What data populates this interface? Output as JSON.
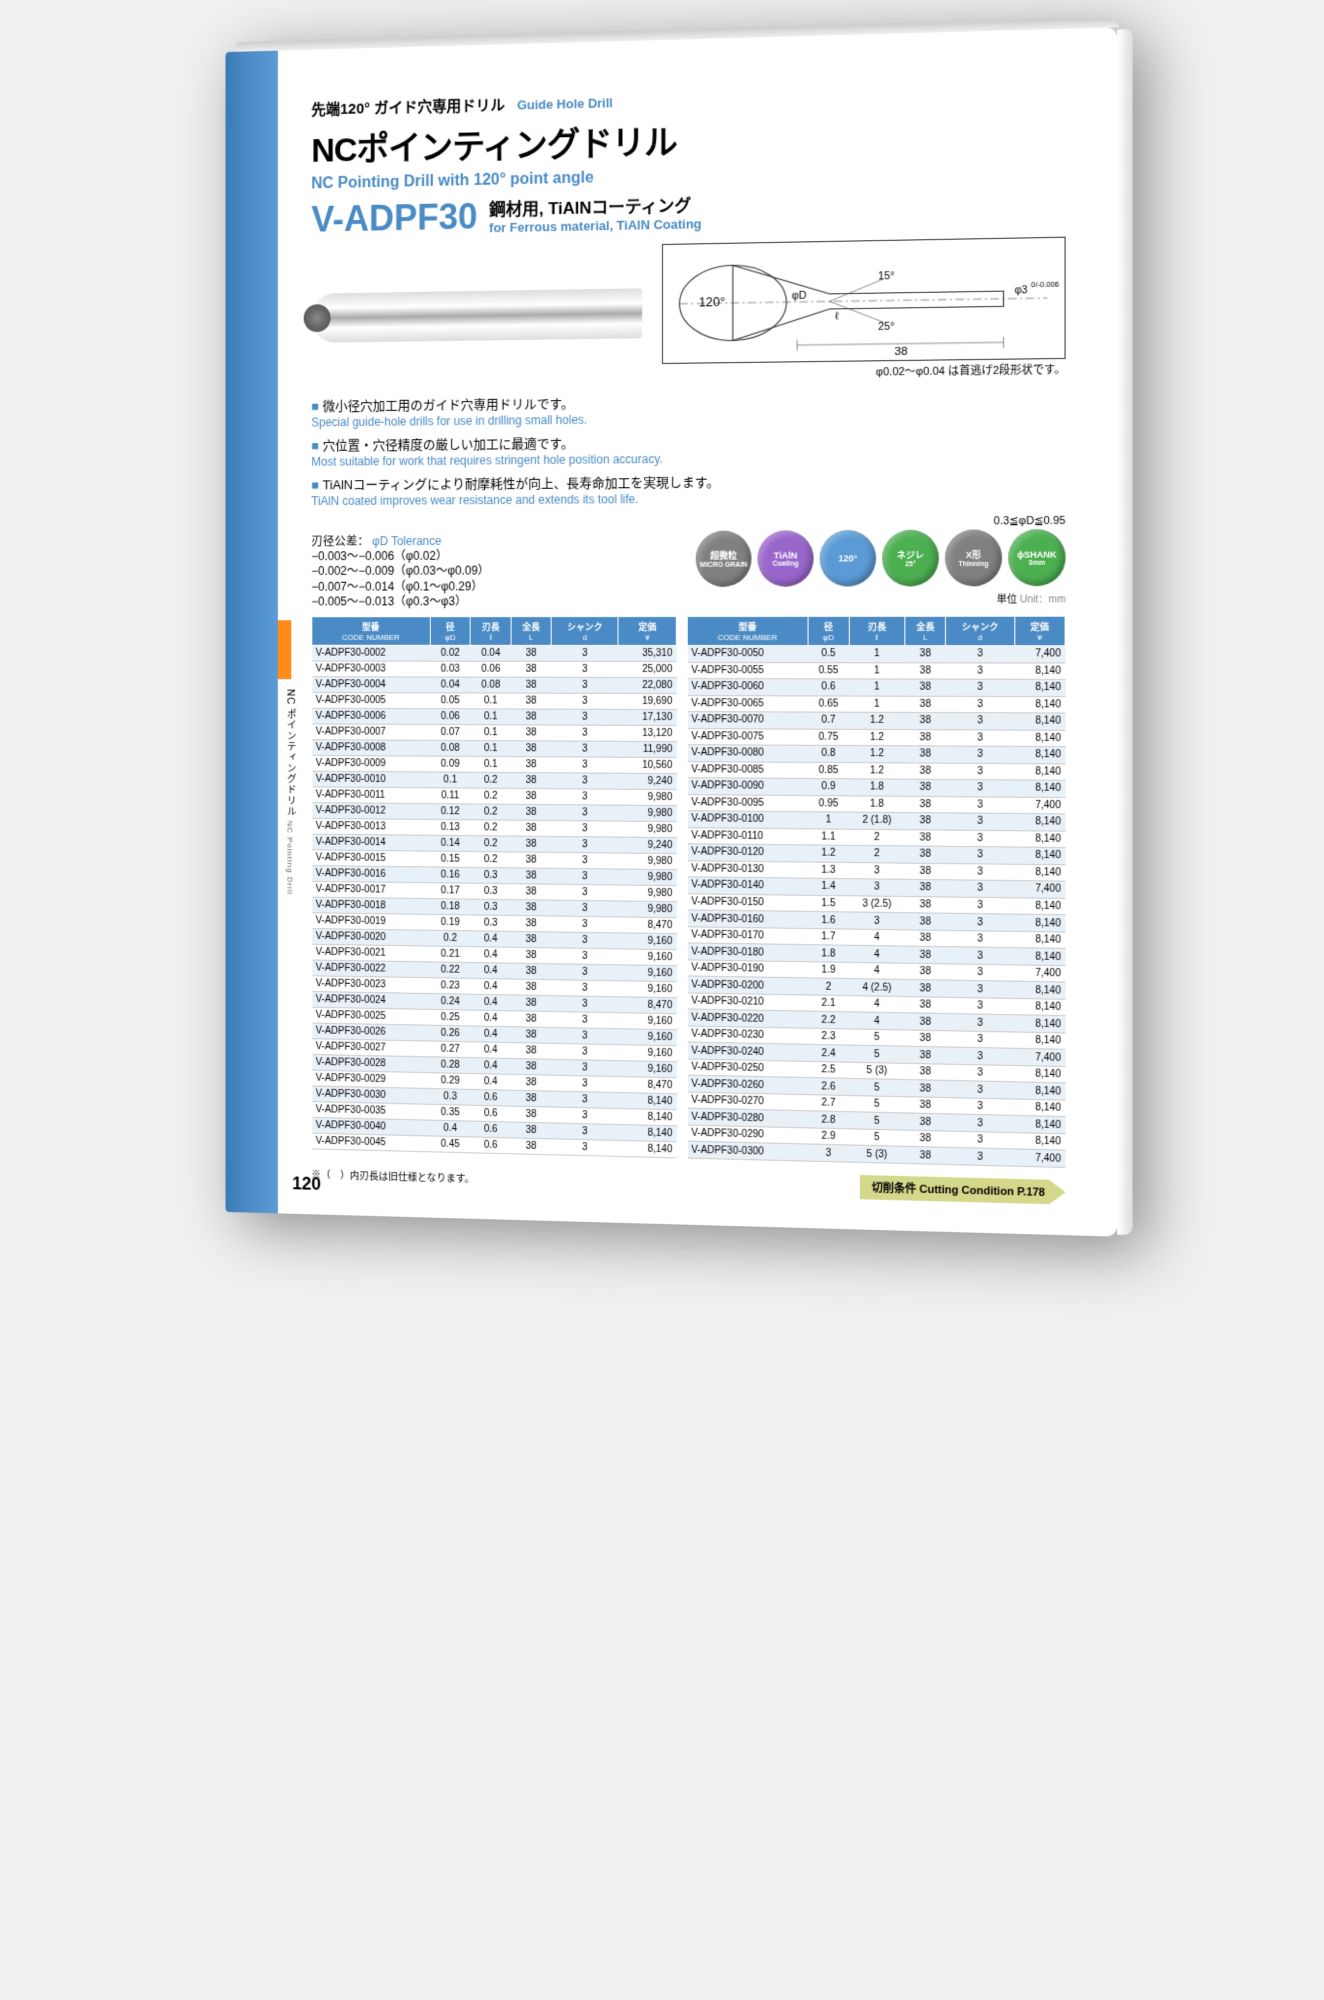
{
  "pretitle_jp": "先端120° ガイド穴専用ドリル",
  "pretitle_en": "Guide Hole Drill",
  "title_jp": "NCポインティングドリル",
  "title_en": "NC Pointing Drill with 120° point angle",
  "model": "V-ADPF30",
  "material_jp": "鋼材用, TiAlNコーティング",
  "material_en": "for Ferrous material, TiAlN Coating",
  "diagram": {
    "angle_main": "120°",
    "angle_a": "15°",
    "angle_b": "25°",
    "dim_D": "φD",
    "dim_l": "ℓ",
    "dim_L": "38",
    "dim_d": "φ3",
    "tol": "0/-0.006",
    "note": "φ0.02〜φ0.04 は首逃げ2段形状です。"
  },
  "features": [
    {
      "jp": "微小径穴加工用のガイド穴専用ドリルです。",
      "en": "Special guide-hole drills for use in drilling small holes."
    },
    {
      "jp": "穴位置・穴径精度の厳しい加工に最適です。",
      "en": "Most suitable for work that requires stringent hole position accuracy."
    },
    {
      "jp": "TiAlNコーティングにより耐摩耗性が向上、長寿命加工を実現します。",
      "en": "TiAlN coated improves wear resistance and extends its tool life."
    }
  ],
  "tolerance": {
    "label_jp": "刃径公差：",
    "label_en": "φD Tolerance",
    "rows": [
      "−0.003〜−0.006（φ0.02）",
      "−0.002〜−0.009（φ0.03〜φ0.09）",
      "−0.007〜−0.014（φ0.1〜φ0.29）",
      "−0.005〜−0.013（φ0.3〜φ3）"
    ]
  },
  "badges": [
    {
      "top": "超微粒",
      "bottom": "MICRO GRAIN",
      "color": "#808080"
    },
    {
      "top": "TiAlN",
      "bottom": "Coating",
      "color": "#9966cc"
    },
    {
      "top": "120°",
      "bottom": "",
      "color": "#5a9bd5"
    },
    {
      "top": "ネジレ",
      "bottom": "25°",
      "color": "#4caf50"
    },
    {
      "top": "X形",
      "bottom": "Thinning",
      "color": "#808080"
    },
    {
      "top": "ϕSHANK",
      "bottom": "3mm",
      "color": "#4caf50"
    }
  ],
  "range_note": "0.3≦φD≦0.95",
  "unit_jp": "単位",
  "unit_en": "Unit：mm",
  "columns": [
    {
      "jp": "型番",
      "en": "CODE NUMBER"
    },
    {
      "jp": "径",
      "en": "φD"
    },
    {
      "jp": "刃長",
      "en": "ℓ"
    },
    {
      "jp": "全長",
      "en": "L"
    },
    {
      "jp": "シャンク",
      "en": "d"
    },
    {
      "jp": "定価",
      "en": "¥"
    }
  ],
  "table1": [
    [
      "V-ADPF30-0002",
      "0.02",
      "0.04",
      "38",
      "3",
      "35,310"
    ],
    [
      "V-ADPF30-0003",
      "0.03",
      "0.06",
      "38",
      "3",
      "25,000"
    ],
    [
      "V-ADPF30-0004",
      "0.04",
      "0.08",
      "38",
      "3",
      "22,080"
    ],
    [
      "V-ADPF30-0005",
      "0.05",
      "0.1",
      "38",
      "3",
      "19,690"
    ],
    [
      "V-ADPF30-0006",
      "0.06",
      "0.1",
      "38",
      "3",
      "17,130"
    ],
    [
      "V-ADPF30-0007",
      "0.07",
      "0.1",
      "38",
      "3",
      "13,120"
    ],
    [
      "V-ADPF30-0008",
      "0.08",
      "0.1",
      "38",
      "3",
      "11,990"
    ],
    [
      "V-ADPF30-0009",
      "0.09",
      "0.1",
      "38",
      "3",
      "10,560"
    ],
    [
      "V-ADPF30-0010",
      "0.1",
      "0.2",
      "38",
      "3",
      "9,240"
    ],
    [
      "V-ADPF30-0011",
      "0.11",
      "0.2",
      "38",
      "3",
      "9,980"
    ],
    [
      "V-ADPF30-0012",
      "0.12",
      "0.2",
      "38",
      "3",
      "9,980"
    ],
    [
      "V-ADPF30-0013",
      "0.13",
      "0.2",
      "38",
      "3",
      "9,980"
    ],
    [
      "V-ADPF30-0014",
      "0.14",
      "0.2",
      "38",
      "3",
      "9,240"
    ],
    [
      "V-ADPF30-0015",
      "0.15",
      "0.2",
      "38",
      "3",
      "9,980"
    ],
    [
      "V-ADPF30-0016",
      "0.16",
      "0.3",
      "38",
      "3",
      "9,980"
    ],
    [
      "V-ADPF30-0017",
      "0.17",
      "0.3",
      "38",
      "3",
      "9,980"
    ],
    [
      "V-ADPF30-0018",
      "0.18",
      "0.3",
      "38",
      "3",
      "9,980"
    ],
    [
      "V-ADPF30-0019",
      "0.19",
      "0.3",
      "38",
      "3",
      "8,470"
    ],
    [
      "V-ADPF30-0020",
      "0.2",
      "0.4",
      "38",
      "3",
      "9,160"
    ],
    [
      "V-ADPF30-0021",
      "0.21",
      "0.4",
      "38",
      "3",
      "9,160"
    ],
    [
      "V-ADPF30-0022",
      "0.22",
      "0.4",
      "38",
      "3",
      "9,160"
    ],
    [
      "V-ADPF30-0023",
      "0.23",
      "0.4",
      "38",
      "3",
      "9,160"
    ],
    [
      "V-ADPF30-0024",
      "0.24",
      "0.4",
      "38",
      "3",
      "8,470"
    ],
    [
      "V-ADPF30-0025",
      "0.25",
      "0.4",
      "38",
      "3",
      "9,160"
    ],
    [
      "V-ADPF30-0026",
      "0.26",
      "0.4",
      "38",
      "3",
      "9,160"
    ],
    [
      "V-ADPF30-0027",
      "0.27",
      "0.4",
      "38",
      "3",
      "9,160"
    ],
    [
      "V-ADPF30-0028",
      "0.28",
      "0.4",
      "38",
      "3",
      "9,160"
    ],
    [
      "V-ADPF30-0029",
      "0.29",
      "0.4",
      "38",
      "3",
      "8,470"
    ],
    [
      "V-ADPF30-0030",
      "0.3",
      "0.6",
      "38",
      "3",
      "8,140"
    ],
    [
      "V-ADPF30-0035",
      "0.35",
      "0.6",
      "38",
      "3",
      "8,140"
    ],
    [
      "V-ADPF30-0040",
      "0.4",
      "0.6",
      "38",
      "3",
      "8,140"
    ],
    [
      "V-ADPF30-0045",
      "0.45",
      "0.6",
      "38",
      "3",
      "8,140"
    ]
  ],
  "table2": [
    [
      "V-ADPF30-0050",
      "0.5",
      "1",
      "38",
      "3",
      "7,400"
    ],
    [
      "V-ADPF30-0055",
      "0.55",
      "1",
      "38",
      "3",
      "8,140"
    ],
    [
      "V-ADPF30-0060",
      "0.6",
      "1",
      "38",
      "3",
      "8,140"
    ],
    [
      "V-ADPF30-0065",
      "0.65",
      "1",
      "38",
      "3",
      "8,140"
    ],
    [
      "V-ADPF30-0070",
      "0.7",
      "1.2",
      "38",
      "3",
      "8,140"
    ],
    [
      "V-ADPF30-0075",
      "0.75",
      "1.2",
      "38",
      "3",
      "8,140"
    ],
    [
      "V-ADPF30-0080",
      "0.8",
      "1.2",
      "38",
      "3",
      "8,140"
    ],
    [
      "V-ADPF30-0085",
      "0.85",
      "1.2",
      "38",
      "3",
      "8,140"
    ],
    [
      "V-ADPF30-0090",
      "0.9",
      "1.8",
      "38",
      "3",
      "8,140"
    ],
    [
      "V-ADPF30-0095",
      "0.95",
      "1.8",
      "38",
      "3",
      "7,400"
    ],
    [
      "V-ADPF30-0100",
      "1",
      "2 (1.8)",
      "38",
      "3",
      "8,140"
    ],
    [
      "V-ADPF30-0110",
      "1.1",
      "2",
      "38",
      "3",
      "8,140"
    ],
    [
      "V-ADPF30-0120",
      "1.2",
      "2",
      "38",
      "3",
      "8,140"
    ],
    [
      "V-ADPF30-0130",
      "1.3",
      "3",
      "38",
      "3",
      "8,140"
    ],
    [
      "V-ADPF30-0140",
      "1.4",
      "3",
      "38",
      "3",
      "7,400"
    ],
    [
      "V-ADPF30-0150",
      "1.5",
      "3 (2.5)",
      "38",
      "3",
      "8,140"
    ],
    [
      "V-ADPF30-0160",
      "1.6",
      "3",
      "38",
      "3",
      "8,140"
    ],
    [
      "V-ADPF30-0170",
      "1.7",
      "4",
      "38",
      "3",
      "8,140"
    ],
    [
      "V-ADPF30-0180",
      "1.8",
      "4",
      "38",
      "3",
      "8,140"
    ],
    [
      "V-ADPF30-0190",
      "1.9",
      "4",
      "38",
      "3",
      "7,400"
    ],
    [
      "V-ADPF30-0200",
      "2",
      "4 (2.5)",
      "38",
      "3",
      "8,140"
    ],
    [
      "V-ADPF30-0210",
      "2.1",
      "4",
      "38",
      "3",
      "8,140"
    ],
    [
      "V-ADPF30-0220",
      "2.2",
      "4",
      "38",
      "3",
      "8,140"
    ],
    [
      "V-ADPF30-0230",
      "2.3",
      "5",
      "38",
      "3",
      "8,140"
    ],
    [
      "V-ADPF30-0240",
      "2.4",
      "5",
      "38",
      "3",
      "7,400"
    ],
    [
      "V-ADPF30-0250",
      "2.5",
      "5 (3)",
      "38",
      "3",
      "8,140"
    ],
    [
      "V-ADPF30-0260",
      "2.6",
      "5",
      "38",
      "3",
      "8,140"
    ],
    [
      "V-ADPF30-0270",
      "2.7",
      "5",
      "38",
      "3",
      "8,140"
    ],
    [
      "V-ADPF30-0280",
      "2.8",
      "5",
      "38",
      "3",
      "8,140"
    ],
    [
      "V-ADPF30-0290",
      "2.9",
      "5",
      "38",
      "3",
      "8,140"
    ],
    [
      "V-ADPF30-0300",
      "3",
      "5 (3)",
      "38",
      "3",
      "7,400"
    ]
  ],
  "footnote": "※（　）内刃長は旧仕様となります。",
  "cutcond_jp": "切削条件",
  "cutcond_en": "Cutting Condition  P.178",
  "page_number": "120",
  "side_jp": "NC ポインティングドリル",
  "side_en": "NC Pointing Drill",
  "colors": {
    "brand_blue": "#4a8bc5",
    "header_blue": "#4a8bc5",
    "row_alt": "#e8f0f8",
    "orange_tab": "#ff8c1a",
    "cutcond_bg": "#d4d88a"
  }
}
